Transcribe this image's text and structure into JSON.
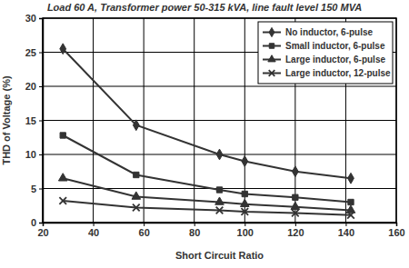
{
  "chart_data": {
    "type": "line",
    "title": "Load 60 A, Transformer power 50-315 kVA, line fault level 150 MVA",
    "x_label": "Short Circuit Ratio",
    "y_label": "THD of Voltage (%)",
    "x": [
      28,
      57,
      90,
      100,
      120,
      142
    ],
    "series": [
      {
        "name": "No inductor, 6-pulse",
        "color": "#333333",
        "marker": "diamond",
        "values": [
          25.5,
          14.3,
          10,
          9,
          7.5,
          6.5
        ]
      },
      {
        "name": "Small inductor, 6-pulse",
        "color": "#333333",
        "marker": "square",
        "values": [
          12.8,
          7,
          4.8,
          4.2,
          3.7,
          3
        ]
      },
      {
        "name": "Large inductor, 6-pulse",
        "color": "#333333",
        "marker": "triangle",
        "values": [
          6.5,
          3.8,
          3,
          2.7,
          2.3,
          1.8
        ]
      },
      {
        "name": "Large inductor, 12-pulse",
        "color": "#333333",
        "marker": "x",
        "values": [
          3.2,
          2.2,
          1.8,
          1.6,
          1.4,
          1.1
        ]
      }
    ],
    "xlim": [
      20,
      160
    ],
    "xticks": [
      20,
      40,
      60,
      80,
      100,
      120,
      140,
      160
    ],
    "ylim": [
      0,
      30
    ],
    "yticks": [
      0,
      5,
      10,
      15,
      20,
      25,
      30
    ],
    "grid": true,
    "legend": "upper right"
  }
}
